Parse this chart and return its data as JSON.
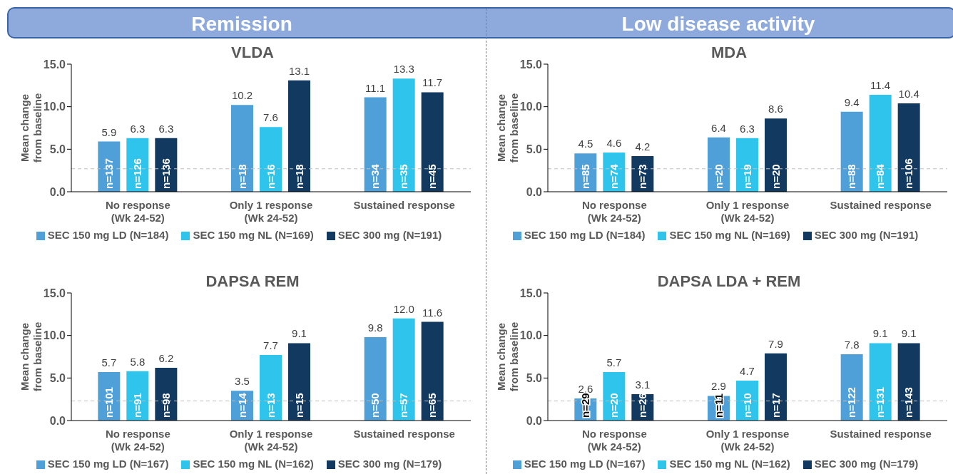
{
  "chart_data": [
    {
      "type": "bar",
      "subtitle": "Remission",
      "title": "VLDA",
      "ylabel": "Mean change\nfrom baseline",
      "categories": [
        "No response\n(Wk 24-52)",
        "Only 1 response\n(Wk 24-52)",
        "Sustained response"
      ],
      "series": [
        {
          "name": "SEC 150 mg LD (N=184)",
          "color": "#4f9fd8",
          "values": [
            5.9,
            10.2,
            11.1
          ]
        },
        {
          "name": "SEC 150 mg NL (N=169)",
          "color": "#2ec4ec",
          "values": [
            6.3,
            7.6,
            13.3
          ]
        },
        {
          "name": "SEC 300 mg (N=191)",
          "color": "#12395f",
          "values": [
            6.3,
            13.1,
            11.7
          ]
        }
      ],
      "annotations": [
        "n=137",
        "n=18",
        "n=34",
        "n=126",
        "n=16",
        "n=35",
        "n=136",
        "n=18",
        "n=45"
      ],
      "ylim": [
        0,
        15
      ],
      "yticks": [
        {
          "value": 0,
          "label": "0.0"
        },
        {
          "value": 5,
          "label": "5.0"
        },
        {
          "value": 10,
          "label": "10.0"
        },
        {
          "value": 15,
          "label": "15.0"
        }
      ],
      "ref_lines": [
        {
          "axis": "y",
          "value": 2.7,
          "color": "#bfbfbf",
          "line_style": "dashed"
        }
      ],
      "data_labels": true,
      "legend": "bottom",
      "grid": false
    },
    {
      "type": "bar",
      "subtitle": "Low disease activity",
      "title": "MDA",
      "ylabel": "Mean change\nfrom baseline",
      "categories": [
        "No response\n(Wk 24-52)",
        "Only 1 response\n(Wk 24-52)",
        "Sustained response"
      ],
      "series": [
        {
          "name": "SEC 150 mg LD (N=184)",
          "color": "#4f9fd8",
          "values": [
            4.5,
            6.4,
            9.4
          ]
        },
        {
          "name": "SEC 150 mg NL (N=169)",
          "color": "#2ec4ec",
          "values": [
            4.6,
            6.3,
            11.4
          ]
        },
        {
          "name": "SEC 300 mg (N=191)",
          "color": "#12395f",
          "values": [
            4.2,
            8.6,
            10.4
          ]
        }
      ],
      "annotations": [
        "n=85",
        "n=20",
        "n=88",
        "n=74",
        "n=19",
        "n=84",
        "n=73",
        "n=20",
        "n=106"
      ],
      "ylim": [
        0,
        15
      ],
      "yticks": [
        {
          "value": 0,
          "label": "0.0"
        },
        {
          "value": 5,
          "label": "5.0"
        },
        {
          "value": 10,
          "label": "10.0"
        },
        {
          "value": 15,
          "label": "15.0"
        }
      ],
      "ref_lines": [
        {
          "axis": "y",
          "value": 2.7,
          "color": "#bfbfbf",
          "line_style": "dashed"
        }
      ],
      "data_labels": true,
      "legend": "bottom",
      "grid": false
    },
    {
      "type": "bar",
      "title": "DAPSA REM",
      "ylabel": "Mean change\nfrom baseline",
      "categories": [
        "No response\n(Wk 24-52)",
        "Only 1 response\n(Wk 24-52)",
        "Sustained response"
      ],
      "series": [
        {
          "name": "SEC 150 mg LD (N=167)",
          "color": "#4f9fd8",
          "values": [
            5.7,
            3.5,
            9.8
          ]
        },
        {
          "name": "SEC 150 mg NL (N=162)",
          "color": "#2ec4ec",
          "values": [
            5.8,
            7.7,
            12.0
          ],
          "value_labels": [
            "5.8",
            "7.7",
            "12.0"
          ]
        },
        {
          "name": "SEC 300 mg (N=179)",
          "color": "#12395f",
          "values": [
            6.2,
            9.1,
            11.6
          ]
        }
      ],
      "annotations": [
        "n=101",
        "n=14",
        "n=50",
        "n=91",
        "n=13",
        "n=57",
        "n=98",
        "n=15",
        "n=65"
      ],
      "ylim": [
        0,
        15
      ],
      "yticks": [
        {
          "value": 0,
          "label": "0.0"
        },
        {
          "value": 5,
          "label": "5.0"
        },
        {
          "value": 10,
          "label": "10.0"
        },
        {
          "value": 15,
          "label": "15.0"
        }
      ],
      "ref_lines": [
        {
          "axis": "y",
          "value": 2.3,
          "color": "#bfbfbf",
          "line_style": "dashed"
        }
      ],
      "data_labels": true,
      "legend": "bottom",
      "grid": false
    },
    {
      "type": "bar",
      "title": "DAPSA LDA + REM",
      "ylabel": "Mean change\nfrom baseline",
      "categories": [
        "No response\n(Wk 24-52)",
        "Only 1 response\n(Wk 24-52)",
        "Sustained response"
      ],
      "series": [
        {
          "name": "SEC 150 mg LD (N=167)",
          "color": "#4f9fd8",
          "values": [
            2.6,
            2.9,
            7.8
          ]
        },
        {
          "name": "SEC 150 mg NL (N=162)",
          "color": "#2ec4ec",
          "values": [
            5.7,
            4.7,
            9.1
          ]
        },
        {
          "name": "SEC 300 mg (N=179)",
          "color": "#12395f",
          "values": [
            3.1,
            7.9,
            9.1
          ]
        }
      ],
      "annotations": [
        "n=29",
        "n=11",
        "n=122",
        "n=20",
        "n=10",
        "n=131",
        "n=26",
        "n=17",
        "n=143"
      ],
      "ylim": [
        0,
        15
      ],
      "yticks": [
        {
          "value": 0,
          "label": "0.0"
        },
        {
          "value": 5,
          "label": "5.0"
        },
        {
          "value": 10,
          "label": "10.0"
        },
        {
          "value": 15,
          "label": "15.0"
        }
      ],
      "ref_lines": [
        {
          "axis": "y",
          "value": 2.3,
          "color": "#bfbfbf",
          "line_style": "dashed"
        }
      ],
      "data_labels": true,
      "legend": "bottom",
      "grid": false
    }
  ]
}
